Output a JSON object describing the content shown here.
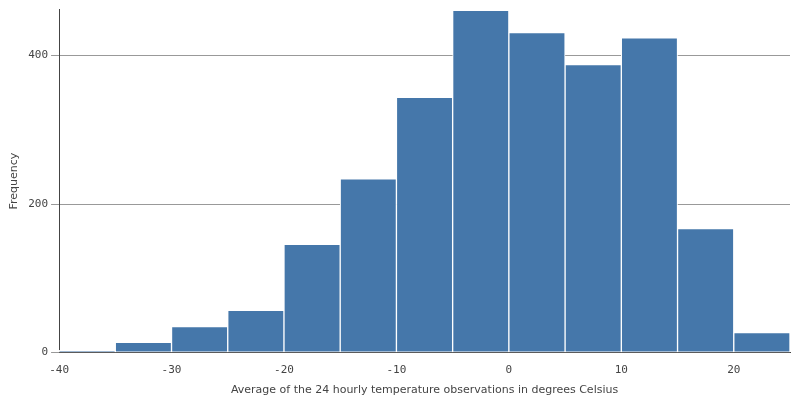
{
  "chart_data": {
    "type": "histogram",
    "x_label": "Average of the 24 hourly temperature observations in degrees Celsius",
    "y_label": "Frequency",
    "bins": [
      -40,
      -35,
      -30,
      -25,
      -20,
      -15,
      -10,
      -5,
      0,
      5,
      10,
      15,
      20,
      25
    ],
    "values": [
      3,
      14,
      35,
      57,
      146,
      234,
      344,
      461,
      431,
      388,
      424,
      167,
      27
    ],
    "color": "#4577aa",
    "xlim": [
      -40,
      25
    ],
    "xticks": [
      -40,
      -30,
      -20,
      -10,
      0,
      10,
      20
    ],
    "ylim": [
      0,
      462
    ],
    "yticks": [
      0,
      200,
      400
    ],
    "grid": true
  }
}
